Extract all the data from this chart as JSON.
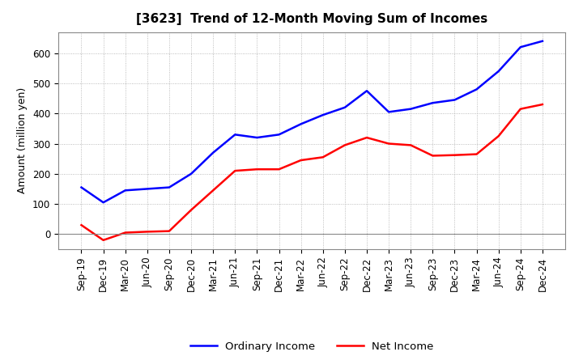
{
  "title": "[3623]  Trend of 12-Month Moving Sum of Incomes",
  "ylabel": "Amount (million yen)",
  "ylim": [
    -50,
    670
  ],
  "yticks": [
    0,
    100,
    200,
    300,
    400,
    500,
    600
  ],
  "ordinary_income_color": "#0000FF",
  "net_income_color": "#FF0000",
  "background_color": "#FFFFFF",
  "grid_color": "#AAAAAA",
  "dates": [
    "Sep-19",
    "Dec-19",
    "Mar-20",
    "Jun-20",
    "Sep-20",
    "Dec-20",
    "Mar-21",
    "Jun-21",
    "Sep-21",
    "Dec-21",
    "Mar-22",
    "Jun-22",
    "Sep-22",
    "Dec-22",
    "Mar-23",
    "Jun-23",
    "Sep-23",
    "Dec-23",
    "Mar-24",
    "Jun-24",
    "Sep-24",
    "Dec-24"
  ],
  "ordinary_income": [
    155,
    105,
    145,
    150,
    155,
    200,
    270,
    330,
    320,
    330,
    365,
    395,
    420,
    475,
    405,
    415,
    435,
    445,
    480,
    540,
    620,
    640
  ],
  "net_income": [
    30,
    -20,
    5,
    8,
    10,
    80,
    145,
    210,
    215,
    215,
    245,
    255,
    295,
    320,
    300,
    295,
    260,
    262,
    265,
    325,
    415,
    430
  ],
  "legend_ordinary": "Ordinary Income",
  "legend_net": "Net Income",
  "title_fontsize": 11,
  "label_fontsize": 9,
  "tick_fontsize": 8.5
}
